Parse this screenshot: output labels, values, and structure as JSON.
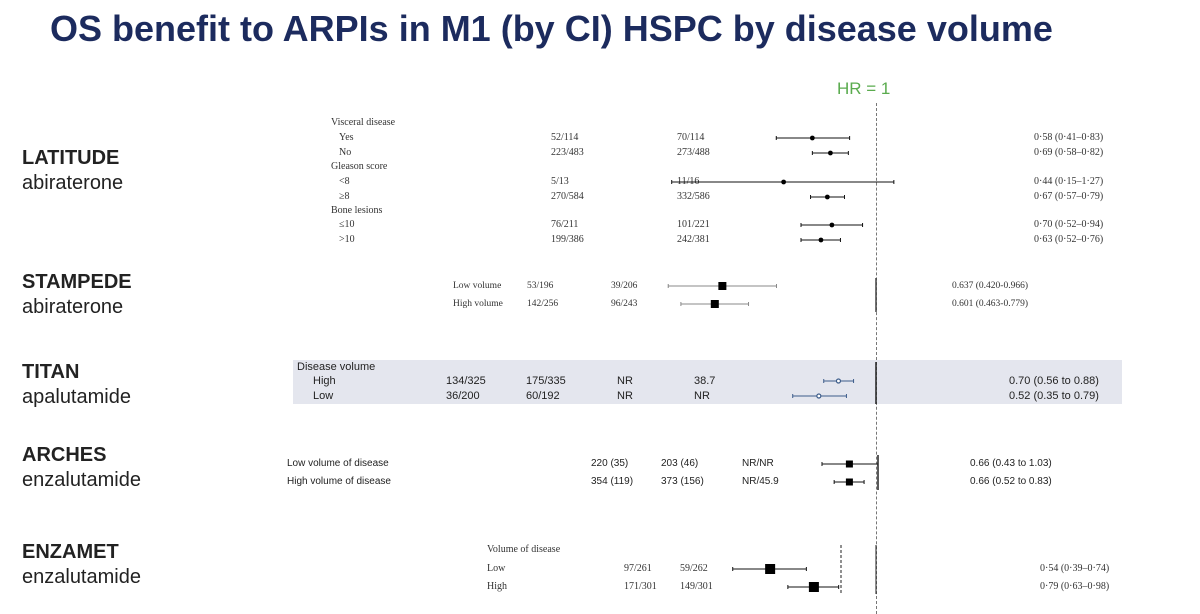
{
  "title": "OS benefit to ARPIs in M1 (by CI) HSPC by disease volume",
  "hr_label": "HR = 1",
  "chart_data": {
    "type": "forest",
    "reference_line": 1,
    "trials": [
      {
        "name": "LATITUDE",
        "drug": "abiraterone",
        "rows": [
          {
            "header": "Visceral disease"
          },
          {
            "label": "Yes",
            "a": "52/114",
            "b": "70/114",
            "hr": 0.58,
            "lo": 0.41,
            "hi": 0.83,
            "text": "0·58 (0·41–0·83)"
          },
          {
            "label": "No",
            "a": "223/483",
            "b": "273/488",
            "hr": 0.69,
            "lo": 0.58,
            "hi": 0.82,
            "text": "0·69 (0·58–0·82)"
          },
          {
            "header": "Gleason score"
          },
          {
            "label": "<8",
            "a": "5/13",
            "b": "11/16",
            "hr": 0.44,
            "lo": 0.15,
            "hi": 1.27,
            "text": "0·44 (0·15–1·27)"
          },
          {
            "label": "≥8",
            "a": "270/584",
            "b": "332/586",
            "hr": 0.67,
            "lo": 0.57,
            "hi": 0.79,
            "text": "0·67 (0·57–0·79)"
          },
          {
            "header": "Bone lesions"
          },
          {
            "label": "≤10",
            "a": "76/211",
            "b": "101/221",
            "hr": 0.7,
            "lo": 0.52,
            "hi": 0.94,
            "text": "0·70 (0·52–0·94)"
          },
          {
            "label": ">10",
            "a": "199/386",
            "b": "242/381",
            "hr": 0.63,
            "lo": 0.52,
            "hi": 0.76,
            "text": "0·63 (0·52–0·76)"
          }
        ]
      },
      {
        "name": "STAMPEDE",
        "drug": "abiraterone",
        "rows": [
          {
            "label": "Low volume",
            "a": "53/196",
            "b": "39/206",
            "hr": 0.637,
            "lo": 0.42,
            "hi": 0.966,
            "text": "0.637 (0.420-0.966)"
          },
          {
            "label": "High volume",
            "a": "142/256",
            "b": "96/243",
            "hr": 0.601,
            "lo": 0.463,
            "hi": 0.779,
            "text": "0.601 (0.463-0.779)"
          }
        ]
      },
      {
        "name": "TITAN",
        "drug": "apalutamide",
        "rows": [
          {
            "header": "Disease volume"
          },
          {
            "label": "High",
            "a": "134/325",
            "b": "175/335",
            "c": "NR",
            "d": "38.7",
            "hr": 0.7,
            "lo": 0.56,
            "hi": 0.88,
            "text": "0.70 (0.56 to 0.88)"
          },
          {
            "label": "Low",
            "a": "36/200",
            "b": "60/192",
            "c": "NR",
            "d": "NR",
            "hr": 0.52,
            "lo": 0.35,
            "hi": 0.79,
            "text": "0.52 (0.35 to 0.79)"
          }
        ]
      },
      {
        "name": "ARCHES",
        "drug": "enzalutamide",
        "rows": [
          {
            "label": "Low volume of disease",
            "a": "220 (35)",
            "b": "203 (46)",
            "c": "NR/NR",
            "hr": 0.66,
            "lo": 0.43,
            "hi": 1.03,
            "text": "0.66 (0.43 to 1.03)"
          },
          {
            "label": "High volume of disease",
            "a": "354 (119)",
            "b": "373 (156)",
            "c": "NR/45.9",
            "hr": 0.66,
            "lo": 0.52,
            "hi": 0.83,
            "text": "0.66 (0.52 to 0.83)"
          }
        ]
      },
      {
        "name": "ENZAMET",
        "drug": "enzalutamide",
        "rows": [
          {
            "header": "Volume of disease"
          },
          {
            "label": "Low",
            "a": "97/261",
            "b": "59/262",
            "hr": 0.54,
            "lo": 0.39,
            "hi": 0.74,
            "text": "0·54 (0·39–0·74)"
          },
          {
            "label": "High",
            "a": "171/301",
            "b": "149/301",
            "hr": 0.79,
            "lo": 0.63,
            "hi": 0.98,
            "text": "0·79 (0·63–0·98)"
          }
        ]
      }
    ]
  }
}
